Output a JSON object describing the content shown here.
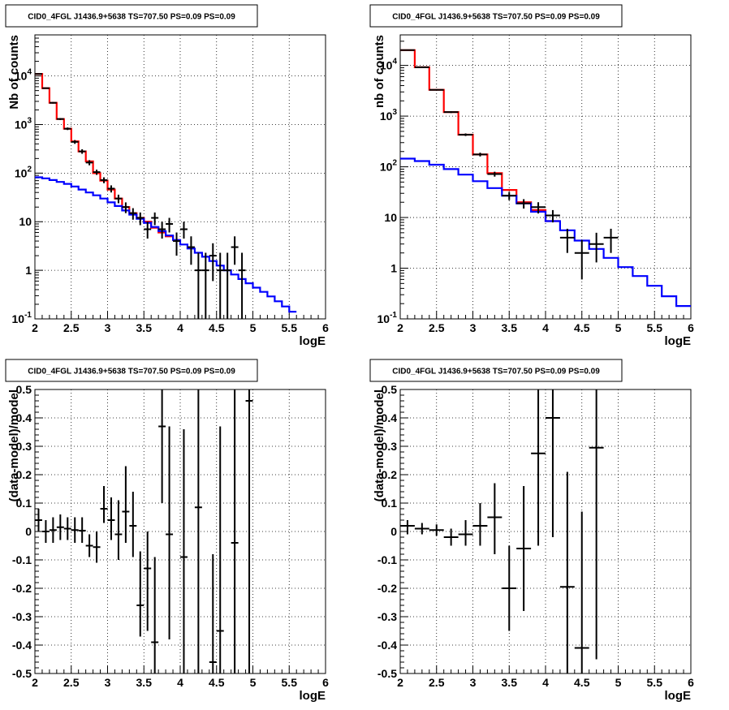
{
  "chart_data": [
    {
      "panel": "top-left",
      "type": "line",
      "title": "CID0_4FGL J1436.9+5638 TS=707.50 PS=0.09 PS=0.09",
      "xlabel": "logE",
      "ylabel": "Nb of counts",
      "xlim": [
        2,
        6
      ],
      "ylim": [
        0.1,
        70000
      ],
      "yscale": "log",
      "grid": true,
      "x_ticks": [
        "2",
        "2.5",
        "3",
        "3.5",
        "4",
        "4.5",
        "5",
        "5.5",
        "6"
      ],
      "y_ticks": [
        {
          "v": 0.1,
          "mant": "10",
          "exp": "-1"
        },
        {
          "v": 1,
          "mant": "1",
          "exp": ""
        },
        {
          "v": 10,
          "mant": "10",
          "exp": ""
        },
        {
          "v": 100,
          "mant": "10",
          "exp": "2"
        },
        {
          "v": 1000,
          "mant": "10",
          "exp": "3"
        },
        {
          "v": 10000,
          "mant": "10",
          "exp": "4"
        }
      ],
      "series": [
        {
          "color": "#ff0000",
          "kind": "step",
          "bin_width": 0.1,
          "x_start": 2.0,
          "values": [
            11000,
            5600,
            2800,
            1300,
            820,
            450,
            280,
            175,
            100,
            70,
            46,
            30,
            20,
            15,
            12,
            10,
            7.5,
            6.0,
            5.0,
            4.2
          ]
        },
        {
          "color": "#0000ff",
          "kind": "step",
          "bin_width": 0.1,
          "x_start": 2.0,
          "values": [
            82,
            78,
            72,
            66,
            60,
            53,
            46,
            40,
            35,
            30,
            25,
            21,
            17,
            14,
            11.5,
            9.5,
            7.8,
            6.4,
            5.2,
            4.2,
            3.4,
            2.8,
            2.3,
            1.9,
            1.55,
            1.25,
            1.0,
            0.82,
            0.66,
            0.54,
            0.44,
            0.36,
            0.29,
            0.23,
            0.18,
            0.14
          ]
        },
        {
          "color": "#000000",
          "kind": "errorbar",
          "half_width": 0.05,
          "points": [
            {
              "x": 2.05,
              "y": 11000,
              "lo": 10800,
              "hi": 11200
            },
            {
              "x": 2.15,
              "y": 5600,
              "lo": 5450,
              "hi": 5750
            },
            {
              "x": 2.25,
              "y": 2800,
              "lo": 2700,
              "hi": 2900
            },
            {
              "x": 2.35,
              "y": 1300,
              "lo": 1240,
              "hi": 1360
            },
            {
              "x": 2.45,
              "y": 820,
              "lo": 770,
              "hi": 870
            },
            {
              "x": 2.55,
              "y": 440,
              "lo": 400,
              "hi": 480
            },
            {
              "x": 2.65,
              "y": 280,
              "lo": 250,
              "hi": 310
            },
            {
              "x": 2.75,
              "y": 165,
              "lo": 145,
              "hi": 185
            },
            {
              "x": 2.85,
              "y": 105,
              "lo": 92,
              "hi": 118
            },
            {
              "x": 2.95,
              "y": 72,
              "lo": 62,
              "hi": 82
            },
            {
              "x": 3.05,
              "y": 48,
              "lo": 40,
              "hi": 56
            },
            {
              "x": 3.15,
              "y": 30,
              "lo": 24,
              "hi": 36
            },
            {
              "x": 3.25,
              "y": 20,
              "lo": 15,
              "hi": 25
            },
            {
              "x": 3.35,
              "y": 15,
              "lo": 11,
              "hi": 19
            },
            {
              "x": 3.45,
              "y": 12,
              "lo": 8.5,
              "hi": 15.5
            },
            {
              "x": 3.55,
              "y": 7,
              "lo": 4.5,
              "hi": 10
            },
            {
              "x": 3.65,
              "y": 12,
              "lo": 8.5,
              "hi": 15.5
            },
            {
              "x": 3.75,
              "y": 7,
              "lo": 4.5,
              "hi": 10
            },
            {
              "x": 3.85,
              "y": 9,
              "lo": 6,
              "hi": 12
            },
            {
              "x": 3.95,
              "y": 4,
              "lo": 2,
              "hi": 6
            },
            {
              "x": 4.05,
              "y": 7,
              "lo": 4.5,
              "hi": 10
            },
            {
              "x": 4.15,
              "y": 3,
              "lo": 1.3,
              "hi": 5
            },
            {
              "x": 4.25,
              "y": 1,
              "lo": 0.1,
              "hi": 2.3
            },
            {
              "x": 4.35,
              "y": 1,
              "lo": 0.1,
              "hi": 2.3
            },
            {
              "x": 4.45,
              "y": 2,
              "lo": 0.6,
              "hi": 3.6
            },
            {
              "x": 4.55,
              "y": 1,
              "lo": 0.1,
              "hi": 2.3
            },
            {
              "x": 4.65,
              "y": 1,
              "lo": 0.1,
              "hi": 2.3
            },
            {
              "x": 4.75,
              "y": 3,
              "lo": 1.3,
              "hi": 5
            },
            {
              "x": 4.85,
              "y": 1,
              "lo": 0.1,
              "hi": 2.3
            }
          ]
        }
      ]
    },
    {
      "panel": "top-right",
      "type": "line",
      "title": "CID0_4FGL J1436.9+5638 TS=707.50 PS=0.09 PS=0.09",
      "xlabel": "logE",
      "ylabel": "nb of counts",
      "xlim": [
        2,
        6
      ],
      "ylim": [
        0.1,
        40000
      ],
      "yscale": "log",
      "grid": true,
      "x_ticks": [
        "2",
        "2.5",
        "3",
        "3.5",
        "4",
        "4.5",
        "5",
        "5.5",
        "6"
      ],
      "y_ticks": [
        {
          "v": 0.1,
          "mant": "10",
          "exp": "-1"
        },
        {
          "v": 1,
          "mant": "1",
          "exp": ""
        },
        {
          "v": 10,
          "mant": "10",
          "exp": ""
        },
        {
          "v": 100,
          "mant": "10",
          "exp": "2"
        },
        {
          "v": 1000,
          "mant": "10",
          "exp": "3"
        },
        {
          "v": 10000,
          "mant": "10",
          "exp": "4"
        }
      ],
      "series": [
        {
          "color": "#ff0000",
          "kind": "step",
          "bin_width": 0.2,
          "x_start": 2.0,
          "values": [
            20000,
            9200,
            3300,
            1200,
            430,
            175,
            75,
            35,
            20,
            14,
            8.5
          ]
        },
        {
          "color": "#0000ff",
          "kind": "step",
          "bin_width": 0.2,
          "x_start": 2.0,
          "values": [
            145,
            130,
            110,
            90,
            70,
            52,
            38,
            27,
            19,
            13,
            8.5,
            5.6,
            3.5,
            2.4,
            1.6,
            1.05,
            0.7,
            0.45,
            0.28,
            0.18
          ]
        },
        {
          "color": "#000000",
          "kind": "errorbar",
          "half_width": 0.1,
          "points": [
            {
              "x": 2.1,
              "y": 20000,
              "lo": 19800,
              "hi": 20200
            },
            {
              "x": 2.3,
              "y": 9200,
              "lo": 9000,
              "hi": 9400
            },
            {
              "x": 2.5,
              "y": 3300,
              "lo": 3200,
              "hi": 3400
            },
            {
              "x": 2.7,
              "y": 1200,
              "lo": 1150,
              "hi": 1250
            },
            {
              "x": 2.9,
              "y": 430,
              "lo": 405,
              "hi": 455
            },
            {
              "x": 3.1,
              "y": 175,
              "lo": 160,
              "hi": 190
            },
            {
              "x": 3.3,
              "y": 72,
              "lo": 64,
              "hi": 80
            },
            {
              "x": 3.5,
              "y": 27,
              "lo": 22,
              "hi": 32
            },
            {
              "x": 3.7,
              "y": 19,
              "lo": 15,
              "hi": 23
            },
            {
              "x": 3.9,
              "y": 16,
              "lo": 12,
              "hi": 20
            },
            {
              "x": 4.1,
              "y": 11,
              "lo": 8,
              "hi": 14
            },
            {
              "x": 4.3,
              "y": 4,
              "lo": 2,
              "hi": 6
            },
            {
              "x": 4.5,
              "y": 2,
              "lo": 0.6,
              "hi": 3.6
            },
            {
              "x": 4.7,
              "y": 3,
              "lo": 1.3,
              "hi": 5
            },
            {
              "x": 4.9,
              "y": 4,
              "lo": 2,
              "hi": 6
            }
          ]
        }
      ]
    },
    {
      "panel": "bottom-left",
      "type": "scatter",
      "title": "CID0_4FGL J1436.9+5638 TS=707.50 PS=0.09 PS=0.09",
      "xlabel": "logE",
      "ylabel": "(data-model)/model",
      "xlim": [
        2,
        6
      ],
      "ylim": [
        -0.5,
        0.5
      ],
      "yscale": "linear",
      "grid": true,
      "x_ticks": [
        "2",
        "2.5",
        "3",
        "3.5",
        "4",
        "4.5",
        "5",
        "5.5",
        "6"
      ],
      "y_ticks": [
        {
          "v": -0.5,
          "mant": "-0.5",
          "exp": ""
        },
        {
          "v": -0.4,
          "mant": "-0.4",
          "exp": ""
        },
        {
          "v": -0.3,
          "mant": "-0.3",
          "exp": ""
        },
        {
          "v": -0.2,
          "mant": "-0.2",
          "exp": ""
        },
        {
          "v": -0.1,
          "mant": "-0.1",
          "exp": ""
        },
        {
          "v": 0,
          "mant": "0",
          "exp": ""
        },
        {
          "v": 0.1,
          "mant": "0.1",
          "exp": ""
        },
        {
          "v": 0.2,
          "mant": "0.2",
          "exp": ""
        },
        {
          "v": 0.3,
          "mant": "0.3",
          "exp": ""
        },
        {
          "v": 0.4,
          "mant": "0.4",
          "exp": ""
        },
        {
          "v": 0.5,
          "mant": "0.5",
          "exp": ""
        }
      ],
      "series": [
        {
          "color": "#000000",
          "kind": "errorbar",
          "half_width": 0.05,
          "points": [
            {
              "x": 2.05,
              "y": 0.04,
              "lo": 0.0,
              "hi": 0.08
            },
            {
              "x": 2.15,
              "y": 0.0,
              "lo": -0.04,
              "hi": 0.04
            },
            {
              "x": 2.25,
              "y": 0.005,
              "lo": -0.04,
              "hi": 0.05
            },
            {
              "x": 2.35,
              "y": 0.015,
              "lo": -0.03,
              "hi": 0.06
            },
            {
              "x": 2.45,
              "y": 0.01,
              "lo": -0.03,
              "hi": 0.05
            },
            {
              "x": 2.55,
              "y": 0.005,
              "lo": -0.04,
              "hi": 0.05
            },
            {
              "x": 2.65,
              "y": 0.003,
              "lo": -0.04,
              "hi": 0.05
            },
            {
              "x": 2.75,
              "y": -0.05,
              "lo": -0.09,
              "hi": -0.01
            },
            {
              "x": 2.85,
              "y": -0.055,
              "lo": -0.11,
              "hi": 0.0
            },
            {
              "x": 2.95,
              "y": 0.08,
              "lo": 0.03,
              "hi": 0.16
            },
            {
              "x": 3.05,
              "y": 0.04,
              "lo": -0.03,
              "hi": 0.12
            },
            {
              "x": 3.15,
              "y": -0.01,
              "lo": -0.1,
              "hi": 0.11
            },
            {
              "x": 3.25,
              "y": 0.07,
              "lo": -0.04,
              "hi": 0.23
            },
            {
              "x": 3.35,
              "y": 0.02,
              "lo": -0.09,
              "hi": 0.14
            },
            {
              "x": 3.45,
              "y": -0.26,
              "lo": -0.37,
              "hi": -0.07
            },
            {
              "x": 3.55,
              "y": -0.13,
              "lo": -0.35,
              "hi": 0.0
            },
            {
              "x": 3.65,
              "y": -0.39,
              "lo": -0.5,
              "hi": -0.09
            },
            {
              "x": 3.75,
              "y": 0.37,
              "lo": 0.1,
              "hi": 0.5
            },
            {
              "x": 3.85,
              "y": -0.01,
              "lo": -0.38,
              "hi": 0.37
            },
            {
              "x": 4.05,
              "y": -0.09,
              "lo": -0.5,
              "hi": 0.36
            },
            {
              "x": 4.25,
              "y": 0.085,
              "lo": -0.5,
              "hi": 0.5
            },
            {
              "x": 4.45,
              "y": -0.46,
              "lo": -0.5,
              "hi": -0.08
            },
            {
              "x": 4.55,
              "y": -0.35,
              "lo": -0.5,
              "hi": 0.37
            },
            {
              "x": 4.75,
              "y": -0.04,
              "lo": -0.5,
              "hi": 0.5
            },
            {
              "x": 4.95,
              "y": 0.46,
              "lo": -0.5,
              "hi": 0.5
            }
          ]
        }
      ]
    },
    {
      "panel": "bottom-right",
      "type": "scatter",
      "title": "CID0_4FGL J1436.9+5638 TS=707.50 PS=0.09 PS=0.09",
      "xlabel": "logE",
      "ylabel": "(data-model)/model",
      "xlim": [
        2,
        6
      ],
      "ylim": [
        -0.5,
        0.5
      ],
      "yscale": "linear",
      "grid": true,
      "x_ticks": [
        "2",
        "2.5",
        "3",
        "3.5",
        "4",
        "4.5",
        "5",
        "5.5",
        "6"
      ],
      "y_ticks": [
        {
          "v": -0.5,
          "mant": "-0.5",
          "exp": ""
        },
        {
          "v": -0.4,
          "mant": "-0.4",
          "exp": ""
        },
        {
          "v": -0.3,
          "mant": "-0.3",
          "exp": ""
        },
        {
          "v": -0.2,
          "mant": "-0.2",
          "exp": ""
        },
        {
          "v": -0.1,
          "mant": "-0.1",
          "exp": ""
        },
        {
          "v": 0,
          "mant": "0",
          "exp": ""
        },
        {
          "v": 0.1,
          "mant": "0.1",
          "exp": ""
        },
        {
          "v": 0.2,
          "mant": "0.2",
          "exp": ""
        },
        {
          "v": 0.3,
          "mant": "0.3",
          "exp": ""
        },
        {
          "v": 0.4,
          "mant": "0.4",
          "exp": ""
        },
        {
          "v": 0.5,
          "mant": "0.5",
          "exp": ""
        }
      ],
      "series": [
        {
          "color": "#000000",
          "kind": "errorbar",
          "half_width": 0.1,
          "points": [
            {
              "x": 2.1,
              "y": 0.02,
              "lo": -0.01,
              "hi": 0.04
            },
            {
              "x": 2.3,
              "y": 0.01,
              "lo": -0.01,
              "hi": 0.03
            },
            {
              "x": 2.5,
              "y": 0.005,
              "lo": -0.015,
              "hi": 0.025
            },
            {
              "x": 2.7,
              "y": -0.02,
              "lo": -0.05,
              "hi": 0.01
            },
            {
              "x": 2.9,
              "y": -0.01,
              "lo": -0.05,
              "hi": 0.04
            },
            {
              "x": 3.1,
              "y": 0.02,
              "lo": -0.05,
              "hi": 0.1
            },
            {
              "x": 3.3,
              "y": 0.05,
              "lo": -0.08,
              "hi": 0.17
            },
            {
              "x": 3.5,
              "y": -0.2,
              "lo": -0.35,
              "hi": -0.05
            },
            {
              "x": 3.7,
              "y": -0.06,
              "lo": -0.28,
              "hi": 0.16
            },
            {
              "x": 3.9,
              "y": 0.275,
              "lo": -0.05,
              "hi": 0.5
            },
            {
              "x": 4.1,
              "y": 0.4,
              "lo": -0.02,
              "hi": 0.5
            },
            {
              "x": 4.3,
              "y": -0.195,
              "lo": -0.5,
              "hi": 0.21
            },
            {
              "x": 4.5,
              "y": -0.41,
              "lo": -0.5,
              "hi": 0.07
            },
            {
              "x": 4.7,
              "y": 0.295,
              "lo": -0.45,
              "hi": 0.5
            }
          ]
        }
      ]
    }
  ]
}
